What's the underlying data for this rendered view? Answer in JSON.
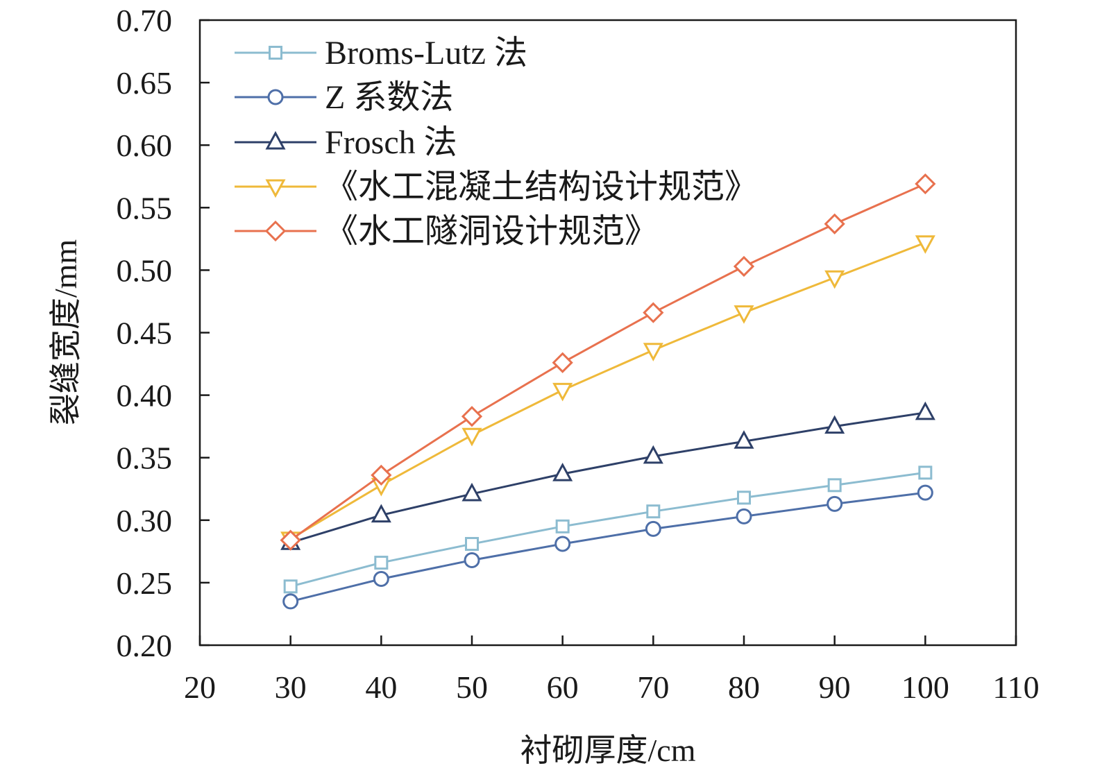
{
  "chart_data": {
    "type": "line",
    "xlabel": "衬砌厚度/cm",
    "ylabel": "裂缝宽度/mm",
    "xlim": [
      20,
      110
    ],
    "ylim": [
      0.2,
      0.7
    ],
    "x_ticks": [
      20,
      30,
      40,
      50,
      60,
      70,
      80,
      90,
      100,
      110
    ],
    "y_ticks": [
      0.2,
      0.25,
      0.3,
      0.35,
      0.4,
      0.45,
      0.5,
      0.55,
      0.6,
      0.65,
      0.7
    ],
    "y_tick_labels": [
      "0.20",
      "0.25",
      "0.30",
      "0.35",
      "0.40",
      "0.45",
      "0.50",
      "0.55",
      "0.60",
      "0.65",
      "0.70"
    ],
    "x": [
      30,
      40,
      50,
      60,
      70,
      80,
      90,
      100
    ],
    "grid": false,
    "legend_position": "top-left",
    "series": [
      {
        "name": "Broms-Lutz 法",
        "marker": "square",
        "color": "#8cbcd0",
        "values": [
          0.247,
          0.266,
          0.281,
          0.295,
          0.307,
          0.318,
          0.328,
          0.338
        ]
      },
      {
        "name": "Z 系数法",
        "marker": "circle",
        "color": "#4e6fa8",
        "values": [
          0.235,
          0.253,
          0.268,
          0.281,
          0.293,
          0.303,
          0.313,
          0.322
        ]
      },
      {
        "name": "Frosch 法",
        "marker": "triangle-up",
        "color": "#2e4068",
        "values": [
          0.282,
          0.304,
          0.321,
          0.337,
          0.351,
          0.363,
          0.375,
          0.386
        ]
      },
      {
        "name": "《水工混凝土结构设计规范》",
        "marker": "triangle-down",
        "color": "#efb93a",
        "values": [
          0.285,
          0.328,
          0.368,
          0.404,
          0.436,
          0.466,
          0.494,
          0.522
        ]
      },
      {
        "name": "《水工隧洞设计规范》",
        "marker": "diamond",
        "color": "#e8714e",
        "values": [
          0.284,
          0.336,
          0.383,
          0.426,
          0.466,
          0.503,
          0.537,
          0.569
        ]
      }
    ]
  }
}
